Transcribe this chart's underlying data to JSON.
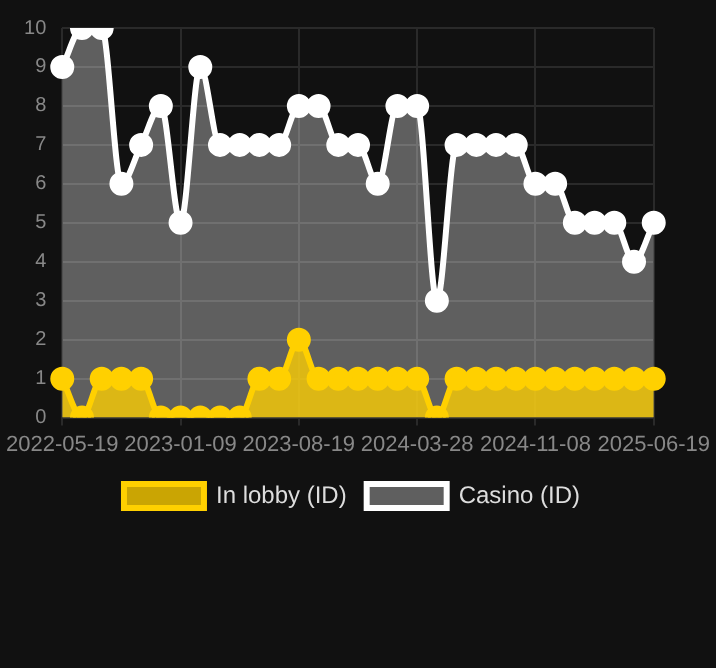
{
  "chart_data": {
    "type": "area",
    "categories": [
      "2022-05-19",
      null,
      null,
      null,
      null,
      null,
      "2023-01-09",
      null,
      null,
      null,
      null,
      null,
      "2023-08-19",
      null,
      null,
      null,
      null,
      null,
      "2024-03-28",
      null,
      null,
      null,
      null,
      null,
      "2024-11-08",
      null,
      null,
      null,
      null,
      null,
      "2025-06-19"
    ],
    "series": [
      {
        "name": "In lobby (ID)",
        "color": "#ffd000",
        "values": [
          1,
          0,
          1,
          1,
          1,
          0,
          0,
          0,
          0,
          0,
          1,
          1,
          2,
          1,
          1,
          1,
          1,
          1,
          1,
          0,
          1,
          1,
          1,
          1,
          1,
          1,
          1,
          1,
          1,
          1,
          1
        ]
      },
      {
        "name": "Casino (ID)",
        "color": "#ffffff",
        "values": [
          9,
          10,
          10,
          6,
          7,
          8,
          5,
          9,
          7,
          7,
          7,
          7,
          8,
          8,
          7,
          7,
          6,
          8,
          8,
          3,
          7,
          7,
          7,
          7,
          6,
          6,
          5,
          5,
          5,
          4,
          5
        ]
      }
    ],
    "ylim": [
      0,
      10
    ],
    "yticks": [
      0,
      1,
      2,
      3,
      4,
      5,
      6,
      7,
      8,
      9,
      10
    ],
    "grid": true,
    "legend": "bottom",
    "marker": "circle",
    "line_style": "solid"
  }
}
